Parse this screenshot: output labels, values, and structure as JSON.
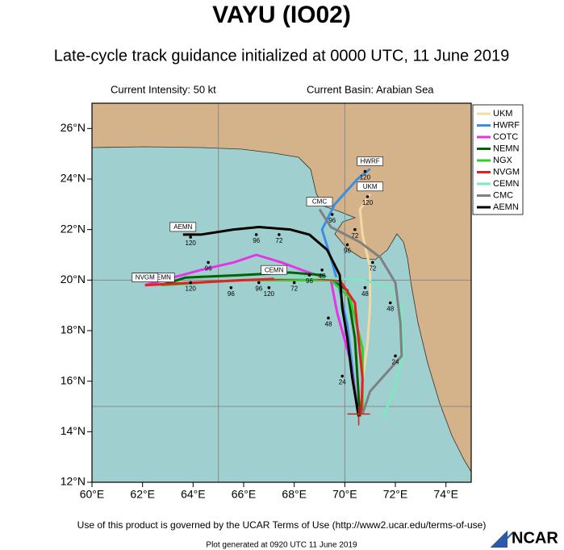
{
  "chart_data": {
    "type": "line",
    "title": "VAYU (IO02)",
    "subtitle": "Late-cycle track guidance initialized at 0000 UTC, 11 June 2019",
    "intensity": "Current Intensity: 50 kt",
    "basin": "Current Basin: Arabian Sea",
    "footer": "Use of this product is governed by the UCAR Terms of Use (http://www2.ucar.edu/terms-of-use)",
    "generated": "Plot generated at 0920 UTC   11 June 2019",
    "logo": "NCAR",
    "xlim": [
      60,
      75
    ],
    "ylim": [
      12,
      27
    ],
    "xticks": [
      {
        "value": 60,
        "label": "60°E"
      },
      {
        "value": 62,
        "label": "62°E"
      },
      {
        "value": 64,
        "label": "64°E"
      },
      {
        "value": 66,
        "label": "66°E"
      },
      {
        "value": 68,
        "label": "68°E"
      },
      {
        "value": 70,
        "label": "70°E"
      },
      {
        "value": 72,
        "label": "72°E"
      },
      {
        "value": 74,
        "label": "74°E"
      }
    ],
    "yticks": [
      {
        "value": 12,
        "label": "12°N"
      },
      {
        "value": 14,
        "label": "14°N"
      },
      {
        "value": 16,
        "label": "16°N"
      },
      {
        "value": 18,
        "label": "18°N"
      },
      {
        "value": 20,
        "label": "20°N"
      },
      {
        "value": 22,
        "label": "22°N"
      },
      {
        "value": 24,
        "label": "24°N"
      },
      {
        "value": 26,
        "label": "26°N"
      }
    ],
    "grid_x": [
      65,
      70
    ],
    "grid_y": [
      15,
      20
    ],
    "current_position": {
      "x": 70.55,
      "y": 14.7
    },
    "series": [
      {
        "name": "UKM",
        "color": "#f2d9a6",
        "end_label": true,
        "x": [
          70.6,
          70.7,
          70.9,
          71.0,
          71.0,
          70.7,
          70.6,
          71.0
        ],
        "values": [
          14.6,
          16.0,
          17.5,
          19.0,
          20.5,
          21.8,
          22.8,
          23.4
        ]
      },
      {
        "name": "HWRF",
        "color": "#3a8ee6",
        "end_label": true,
        "x": [
          70.5,
          70.3,
          70.1,
          69.8,
          69.5,
          69.1,
          69.6,
          70.5,
          71.0
        ],
        "values": [
          14.8,
          16.5,
          18.2,
          19.6,
          20.7,
          22.0,
          23.0,
          24.0,
          24.4
        ]
      },
      {
        "name": "COTC",
        "color": "#e633e6",
        "end_label": true,
        "x": [
          70.55,
          70.2,
          69.7,
          69.45,
          68.3,
          67.5,
          66.5,
          65.6,
          64.3,
          63.2,
          62.1
        ],
        "values": [
          14.7,
          16.9,
          18.7,
          20.0,
          20.4,
          20.7,
          21.0,
          20.7,
          20.4,
          20.1,
          19.8
        ]
      },
      {
        "name": "NEMN",
        "color": "#006400",
        "end_label": true,
        "x": [
          70.6,
          70.4,
          70.1,
          69.1,
          67.85,
          65.9,
          63.7,
          62.75
        ],
        "values": [
          14.6,
          17.7,
          19.6,
          20.2,
          20.3,
          20.2,
          20.1,
          19.8
        ]
      },
      {
        "name": "NGX",
        "color": "#33cc33",
        "end_label": false,
        "x": [
          70.7,
          70.7,
          70.2,
          69.45,
          68.2,
          65.9,
          62.75
        ],
        "values": [
          14.8,
          17.3,
          19.3,
          20.0,
          20.0,
          20.0,
          19.8
        ]
      },
      {
        "name": "NVGM",
        "color": "#e62020",
        "end_label": true,
        "x": [
          70.65,
          70.7,
          70.4,
          69.8,
          68.5,
          66.0,
          62.1
        ],
        "values": [
          14.7,
          16.1,
          19.1,
          20.0,
          20.1,
          20.0,
          19.8
        ]
      },
      {
        "name": "CEMN",
        "color": "#80e6c0",
        "end_label": true,
        "x": [
          71.5,
          72.0,
          72.3,
          72.25,
          71.8,
          70.7,
          69.1,
          67.2
        ],
        "values": [
          14.5,
          15.8,
          17.0,
          18.9,
          19.7,
          20.0,
          20.1,
          20.1
        ]
      },
      {
        "name": "CMC",
        "color": "#808080",
        "end_label": true,
        "x": [
          70.7,
          71.0,
          72.25,
          72.2,
          72.0,
          71.4,
          70.6,
          69.45,
          69.0
        ],
        "values": [
          14.7,
          15.6,
          17.0,
          18.3,
          19.9,
          20.9,
          21.5,
          22.1,
          22.8
        ]
      },
      {
        "name": "AEMN",
        "color": "#000000",
        "end_label": true,
        "x": [
          70.55,
          70.3,
          70.1,
          69.9,
          69.8,
          69.3,
          68.6,
          67.85,
          66.6,
          65.6,
          64.3,
          63.6
        ],
        "values": [
          14.6,
          16.1,
          17.7,
          18.9,
          20.2,
          21.2,
          21.8,
          22.0,
          22.1,
          22.0,
          21.8,
          21.8
        ]
      }
    ],
    "hour_labels": [
      {
        "hour": 120,
        "x": 63.9,
        "y": 21.7
      },
      {
        "hour": 96,
        "x": 66.5,
        "y": 21.8
      },
      {
        "hour": 72,
        "x": 67.4,
        "y": 21.8
      },
      {
        "hour": 96,
        "x": 64.6,
        "y": 20.7
      },
      {
        "hour": 120,
        "x": 63.9,
        "y": 19.9
      },
      {
        "hour": 96,
        "x": 65.5,
        "y": 19.7
      },
      {
        "hour": 96,
        "x": 66.6,
        "y": 19.9
      },
      {
        "hour": 120,
        "x": 67.0,
        "y": 19.7
      },
      {
        "hour": 72,
        "x": 68.0,
        "y": 19.9
      },
      {
        "hour": 96,
        "x": 68.6,
        "y": 20.2
      },
      {
        "hour": 48,
        "x": 69.1,
        "y": 20.4
      },
      {
        "hour": 96,
        "x": 70.1,
        "y": 21.4
      },
      {
        "hour": 96,
        "x": 69.5,
        "y": 22.6
      },
      {
        "hour": 120,
        "x": 70.9,
        "y": 23.3
      },
      {
        "hour": 120,
        "x": 70.8,
        "y": 24.3
      },
      {
        "hour": 72,
        "x": 70.4,
        "y": 22.0
      },
      {
        "hour": 72,
        "x": 71.1,
        "y": 20.7
      },
      {
        "hour": 48,
        "x": 71.8,
        "y": 19.1
      },
      {
        "hour": 24,
        "x": 72.0,
        "y": 17.0
      },
      {
        "hour": 48,
        "x": 69.35,
        "y": 18.5
      },
      {
        "hour": 24,
        "x": 69.9,
        "y": 16.2
      },
      {
        "hour": 48,
        "x": 70.8,
        "y": 19.7
      }
    ]
  }
}
